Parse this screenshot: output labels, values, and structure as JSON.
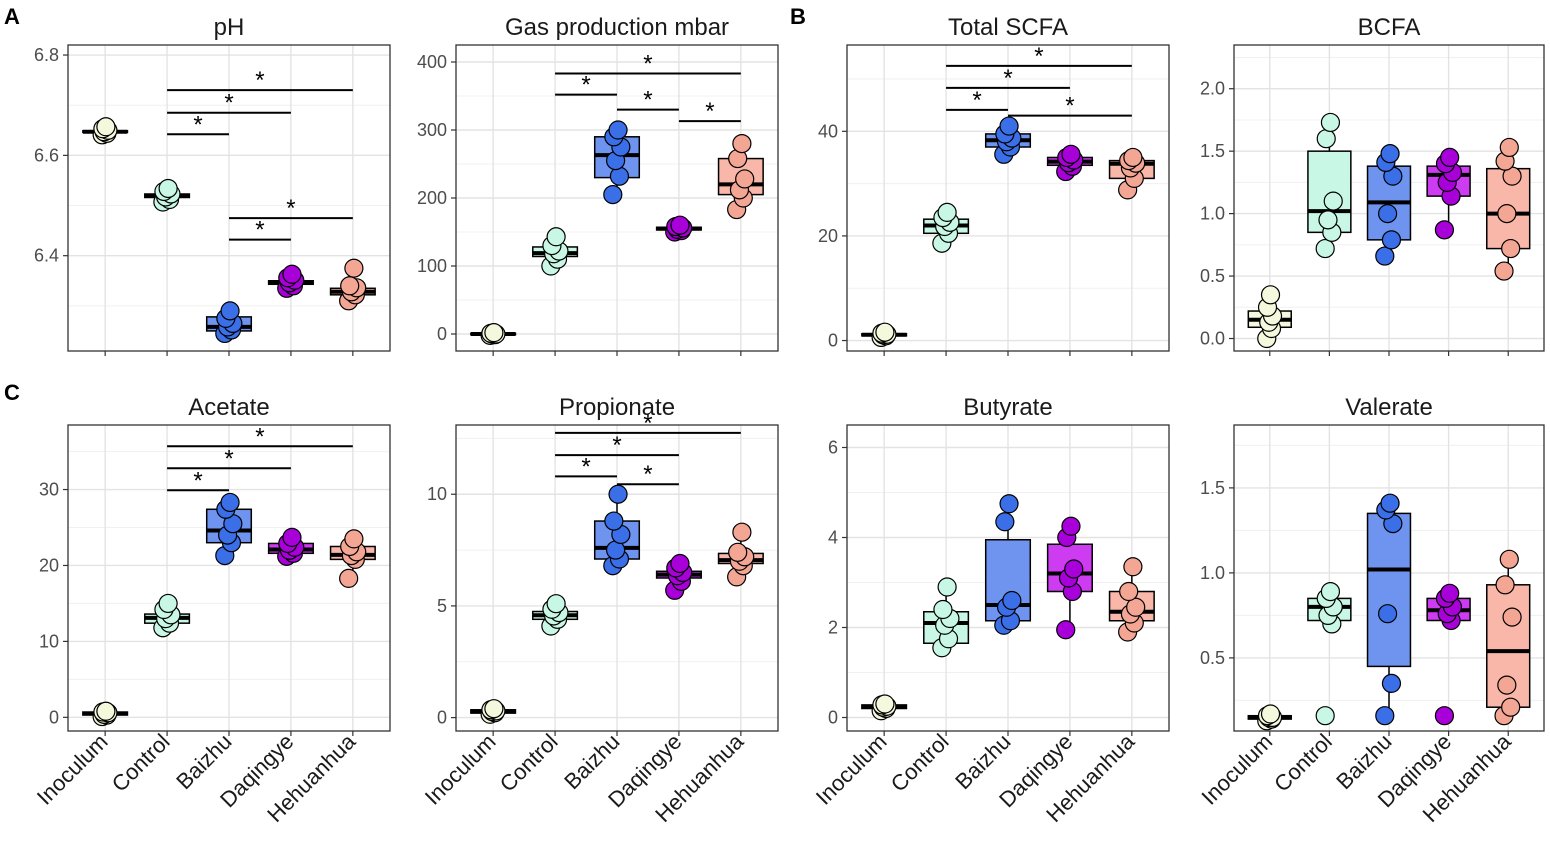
{
  "figure": {
    "group_colors": {
      "Inoculum": "#f4f8dc",
      "Control": "#c8f7e5",
      "Baizhu": "#6f94ef",
      "Daqingye": "#cd3cf0",
      "Hehuanhua": "#f8b7a8"
    },
    "point_colors": {
      "Inoculum": "#f4f8dc",
      "Control": "#c8f7e5",
      "Baizhu": "#3b6fe8",
      "Daqingye": "#a800d8",
      "Hehuanhua": "#f4a694"
    }
  },
  "chart_data": [
    {
      "type": "box",
      "panel_label": "A",
      "title": "pH",
      "categories": [
        "Inoculum",
        "Control",
        "Baizhu",
        "Daqingye",
        "Hehuanhua"
      ],
      "ylim": [
        6.21,
        6.82
      ],
      "yticks": [
        6.4,
        6.6,
        6.8
      ],
      "show_xticks": false,
      "boxes": [
        {
          "q1": 6.646,
          "median": 6.647,
          "q3": 6.649,
          "lo": 6.644,
          "hi": 6.651
        },
        {
          "q1": 6.516,
          "median": 6.52,
          "q3": 6.523,
          "lo": 6.51,
          "hi": 6.53
        },
        {
          "q1": 6.25,
          "median": 6.258,
          "q3": 6.278,
          "lo": 6.24,
          "hi": 6.29
        },
        {
          "q1": 6.343,
          "median": 6.347,
          "q3": 6.35,
          "lo": 6.33,
          "hi": 6.36
        },
        {
          "q1": 6.322,
          "median": 6.328,
          "q3": 6.335,
          "lo": 6.315,
          "hi": 6.36
        }
      ],
      "points": [
        [
          6.641,
          6.644,
          6.647,
          6.65,
          6.653,
          6.657
        ],
        [
          6.507,
          6.512,
          6.517,
          6.523,
          6.528,
          6.534
        ],
        [
          6.245,
          6.252,
          6.258,
          6.265,
          6.275,
          6.29
        ],
        [
          6.335,
          6.34,
          6.346,
          6.351,
          6.356,
          6.363
        ],
        [
          6.31,
          6.322,
          6.328,
          6.336,
          6.34,
          6.375
        ]
      ],
      "sig": [
        {
          "from": 1,
          "to": 4,
          "level": 6.73,
          "label": "*"
        },
        {
          "from": 1,
          "to": 3,
          "level": 6.685,
          "label": "*"
        },
        {
          "from": 1,
          "to": 2,
          "level": 6.642,
          "label": "*"
        },
        {
          "from": 2,
          "to": 4,
          "level": 6.475,
          "label": "*"
        },
        {
          "from": 2,
          "to": 3,
          "level": 6.432,
          "label": "*"
        }
      ]
    },
    {
      "type": "box",
      "panel_label": "",
      "title": "Gas production mbar",
      "categories": [
        "Inoculum",
        "Control",
        "Baizhu",
        "Daqingye",
        "Hehuanhua"
      ],
      "ylim": [
        -25,
        425
      ],
      "yticks": [
        0,
        100,
        200,
        300,
        400
      ],
      "show_xticks": false,
      "boxes": [
        {
          "q1": -1,
          "median": 0,
          "q3": 1,
          "lo": -2,
          "hi": 2
        },
        {
          "q1": 114,
          "median": 119,
          "q3": 128,
          "lo": 100,
          "hi": 143
        },
        {
          "q1": 230,
          "median": 263,
          "q3": 290,
          "lo": 205,
          "hi": 300
        },
        {
          "q1": 153,
          "median": 155,
          "q3": 157,
          "lo": 150,
          "hi": 160
        },
        {
          "q1": 205,
          "median": 220,
          "q3": 258,
          "lo": 183,
          "hi": 280
        }
      ],
      "points": [
        [
          -2,
          -1,
          0,
          0,
          1,
          2
        ],
        [
          100,
          110,
          118,
          122,
          130,
          143
        ],
        [
          205,
          232,
          255,
          275,
          290,
          300
        ],
        [
          150,
          152,
          154,
          156,
          158,
          160
        ],
        [
          183,
          200,
          212,
          228,
          258,
          280
        ]
      ],
      "sig": [
        {
          "from": 1,
          "to": 4,
          "level": 383,
          "label": "*"
        },
        {
          "from": 1,
          "to": 2,
          "level": 352,
          "label": "*"
        },
        {
          "from": 2,
          "to": 3,
          "level": 330,
          "label": "*"
        },
        {
          "from": 3,
          "to": 4,
          "level": 313,
          "label": "*"
        }
      ]
    },
    {
      "type": "box",
      "panel_label": "B",
      "title": "Total SCFA",
      "categories": [
        "Inoculum",
        "Control",
        "Baizhu",
        "Daqingye",
        "Hehuanhua"
      ],
      "ylim": [
        -2,
        56.5
      ],
      "yticks": [
        0,
        20,
        40
      ],
      "show_xticks": false,
      "boxes": [
        {
          "q1": 0.9,
          "median": 1.1,
          "q3": 1.3,
          "lo": 0.6,
          "hi": 1.6
        },
        {
          "q1": 20.5,
          "median": 22,
          "q3": 23.2,
          "lo": 18.6,
          "hi": 24.5
        },
        {
          "q1": 37,
          "median": 38.3,
          "q3": 39.5,
          "lo": 35.6,
          "hi": 41
        },
        {
          "q1": 33.5,
          "median": 34.2,
          "q3": 35,
          "lo": 32.3,
          "hi": 35.6
        },
        {
          "q1": 31,
          "median": 33.8,
          "q3": 34.4,
          "lo": 28.8,
          "hi": 35
        }
      ],
      "points": [
        [
          0.6,
          0.9,
          1.1,
          1.2,
          1.4,
          1.6
        ],
        [
          18.6,
          20.5,
          21.8,
          22.6,
          23.5,
          24.5
        ],
        [
          35.6,
          37,
          38,
          38.7,
          39.5,
          41
        ],
        [
          32.3,
          33.3,
          34,
          34.5,
          35,
          35.6
        ],
        [
          28.8,
          31,
          33,
          33.9,
          34.4,
          35
        ]
      ],
      "sig": [
        {
          "from": 1,
          "to": 4,
          "level": 52.5,
          "label": "*"
        },
        {
          "from": 1,
          "to": 3,
          "level": 48.3,
          "label": "*"
        },
        {
          "from": 1,
          "to": 2,
          "level": 44.1,
          "label": "*"
        },
        {
          "from": 2,
          "to": 4,
          "level": 43.0,
          "label": "*"
        }
      ]
    },
    {
      "type": "box",
      "panel_label": "",
      "title": "BCFA",
      "categories": [
        "Inoculum",
        "Control",
        "Baizhu",
        "Daqingye",
        "Hehuanhua"
      ],
      "ylim": [
        -0.1,
        2.35
      ],
      "yticks": [
        0.0,
        0.5,
        1.0,
        1.5,
        2.0
      ],
      "show_xticks": false,
      "boxes": [
        {
          "q1": 0.09,
          "median": 0.15,
          "q3": 0.22,
          "lo": 0.0,
          "hi": 0.35
        },
        {
          "q1": 0.85,
          "median": 1.02,
          "q3": 1.5,
          "lo": 0.72,
          "hi": 1.73
        },
        {
          "q1": 0.79,
          "median": 1.09,
          "q3": 1.38,
          "lo": 0.66,
          "hi": 1.48
        },
        {
          "q1": 1.14,
          "median": 1.31,
          "q3": 1.38,
          "lo": 0.87,
          "hi": 1.45
        },
        {
          "q1": 0.72,
          "median": 1.0,
          "q3": 1.36,
          "lo": 0.54,
          "hi": 1.53
        }
      ],
      "points": [
        [
          0.0,
          0.08,
          0.13,
          0.18,
          0.25,
          0.35
        ],
        [
          0.72,
          0.85,
          0.95,
          1.1,
          1.6,
          1.73
        ],
        [
          0.66,
          0.79,
          1.0,
          1.3,
          1.41,
          1.48
        ],
        [
          0.87,
          1.14,
          1.25,
          1.33,
          1.4,
          1.45
        ],
        [
          0.54,
          0.72,
          1.0,
          1.3,
          1.42,
          1.53
        ]
      ],
      "sig": []
    },
    {
      "type": "box",
      "panel_label": "C",
      "title": "Acetate",
      "categories": [
        "Inoculum",
        "Control",
        "Baizhu",
        "Daqingye",
        "Hehuanhua"
      ],
      "ylim": [
        -1.8,
        38.5
      ],
      "yticks": [
        0,
        10,
        20,
        30
      ],
      "show_xticks": true,
      "boxes": [
        {
          "q1": 0.3,
          "median": 0.5,
          "q3": 0.7,
          "lo": 0.1,
          "hi": 0.8
        },
        {
          "q1": 12.4,
          "median": 13.1,
          "q3": 13.6,
          "lo": 11.8,
          "hi": 15.0
        },
        {
          "q1": 23.0,
          "median": 24.6,
          "q3": 27.4,
          "lo": 21.3,
          "hi": 28.3
        },
        {
          "q1": 21.6,
          "median": 22.1,
          "q3": 22.9,
          "lo": 21.2,
          "hi": 23.7
        },
        {
          "q1": 20.8,
          "median": 21.4,
          "q3": 22.5,
          "lo": 18.3,
          "hi": 23.5
        }
      ],
      "points": [
        [
          0.1,
          0.3,
          0.4,
          0.6,
          0.7,
          0.8
        ],
        [
          11.8,
          12.4,
          13.0,
          13.5,
          14.2,
          15.0
        ],
        [
          21.3,
          23.0,
          24.0,
          25.5,
          27.4,
          28.3
        ],
        [
          21.2,
          21.6,
          22.0,
          22.4,
          22.9,
          23.7
        ],
        [
          18.3,
          20.8,
          21.3,
          21.8,
          22.5,
          23.5
        ]
      ],
      "sig": [
        {
          "from": 1,
          "to": 4,
          "level": 35.7,
          "label": "*"
        },
        {
          "from": 1,
          "to": 3,
          "level": 32.8,
          "label": "*"
        },
        {
          "from": 1,
          "to": 2,
          "level": 29.9,
          "label": "*"
        }
      ]
    },
    {
      "type": "box",
      "panel_label": "",
      "title": "Propionate",
      "categories": [
        "Inoculum",
        "Control",
        "Baizhu",
        "Daqingye",
        "Hehuanhua"
      ],
      "ylim": [
        -0.6,
        13.1
      ],
      "yticks": [
        0,
        5,
        10
      ],
      "show_xticks": true,
      "boxes": [
        {
          "q1": 0.2,
          "median": 0.28,
          "q3": 0.35,
          "lo": 0.15,
          "hi": 0.4
        },
        {
          "q1": 4.4,
          "median": 4.58,
          "q3": 4.75,
          "lo": 4.1,
          "hi": 5.1
        },
        {
          "q1": 7.1,
          "median": 7.6,
          "q3": 8.8,
          "lo": 6.8,
          "hi": 10.0
        },
        {
          "q1": 6.25,
          "median": 6.4,
          "q3": 6.55,
          "lo": 5.7,
          "hi": 6.9
        },
        {
          "q1": 6.9,
          "median": 7.05,
          "q3": 7.35,
          "lo": 6.3,
          "hi": 8.3
        }
      ],
      "points": [
        [
          0.15,
          0.22,
          0.27,
          0.3,
          0.35,
          0.4
        ],
        [
          4.1,
          4.4,
          4.55,
          4.7,
          4.85,
          5.1
        ],
        [
          6.8,
          7.1,
          7.5,
          8.2,
          8.8,
          10.0
        ],
        [
          5.7,
          6.1,
          6.35,
          6.5,
          6.7,
          6.9
        ],
        [
          6.3,
          6.8,
          7.0,
          7.2,
          7.4,
          8.3
        ]
      ],
      "sig": [
        {
          "from": 1,
          "to": 4,
          "level": 12.75,
          "label": "*"
        },
        {
          "from": 1,
          "to": 3,
          "level": 11.75,
          "label": "*"
        },
        {
          "from": 1,
          "to": 2,
          "level": 10.8,
          "label": "*"
        },
        {
          "from": 3,
          "to": 2,
          "level": 10.45,
          "label": "*"
        }
      ]
    },
    {
      "type": "box",
      "panel_label": "",
      "title": "Butyrate",
      "categories": [
        "Inoculum",
        "Control",
        "Baizhu",
        "Daqingye",
        "Hehuanhua"
      ],
      "ylim": [
        -0.3,
        6.5
      ],
      "yticks": [
        0,
        2,
        4,
        6
      ],
      "show_xticks": true,
      "boxes": [
        {
          "q1": 0.2,
          "median": 0.24,
          "q3": 0.28,
          "lo": 0.15,
          "hi": 0.3
        },
        {
          "q1": 1.65,
          "median": 2.1,
          "q3": 2.35,
          "lo": 1.55,
          "hi": 2.9
        },
        {
          "q1": 2.15,
          "median": 2.5,
          "q3": 3.95,
          "lo": 2.05,
          "hi": 4.75
        },
        {
          "q1": 2.8,
          "median": 3.2,
          "q3": 3.85,
          "lo": 1.95,
          "hi": 4.25
        },
        {
          "q1": 2.15,
          "median": 2.35,
          "q3": 2.8,
          "lo": 1.9,
          "hi": 3.35
        }
      ],
      "points": [
        [
          0.15,
          0.2,
          0.23,
          0.25,
          0.28,
          0.3
        ],
        [
          1.55,
          1.75,
          2.05,
          2.2,
          2.4,
          2.9
        ],
        [
          2.05,
          2.15,
          2.45,
          2.6,
          4.35,
          4.75
        ],
        [
          1.95,
          2.8,
          3.1,
          3.3,
          4.0,
          4.25
        ],
        [
          1.9,
          2.1,
          2.3,
          2.45,
          2.8,
          3.35
        ]
      ],
      "sig": []
    },
    {
      "type": "box",
      "panel_label": "",
      "title": "Valerate",
      "categories": [
        "Inoculum",
        "Control",
        "Baizhu",
        "Daqingye",
        "Hehuanhua"
      ],
      "ylim": [
        0.07,
        1.87
      ],
      "yticks": [
        0.5,
        1.0,
        1.5
      ],
      "show_xticks": true,
      "boxes": [
        {
          "q1": 0.14,
          "median": 0.15,
          "q3": 0.16,
          "lo": 0.13,
          "hi": 0.17
        },
        {
          "q1": 0.72,
          "median": 0.8,
          "q3": 0.85,
          "lo": 0.7,
          "hi": 0.89
        },
        {
          "q1": 0.45,
          "median": 1.02,
          "q3": 1.35,
          "lo": 0.16,
          "hi": 1.41
        },
        {
          "q1": 0.72,
          "median": 0.78,
          "q3": 0.85,
          "lo": 0.72,
          "hi": 0.88
        },
        {
          "q1": 0.21,
          "median": 0.54,
          "q3": 0.93,
          "lo": 0.16,
          "hi": 1.08
        }
      ],
      "points": [
        [
          0.13,
          0.14,
          0.15,
          0.15,
          0.16,
          0.17
        ],
        [
          0.16,
          0.7,
          0.75,
          0.8,
          0.85,
          0.89
        ],
        [
          0.16,
          0.35,
          0.76,
          1.29,
          1.37,
          1.41
        ],
        [
          0.16,
          0.72,
          0.76,
          0.8,
          0.85,
          0.88
        ],
        [
          0.16,
          0.21,
          0.34,
          0.74,
          0.93,
          1.08
        ]
      ],
      "sig": []
    }
  ]
}
